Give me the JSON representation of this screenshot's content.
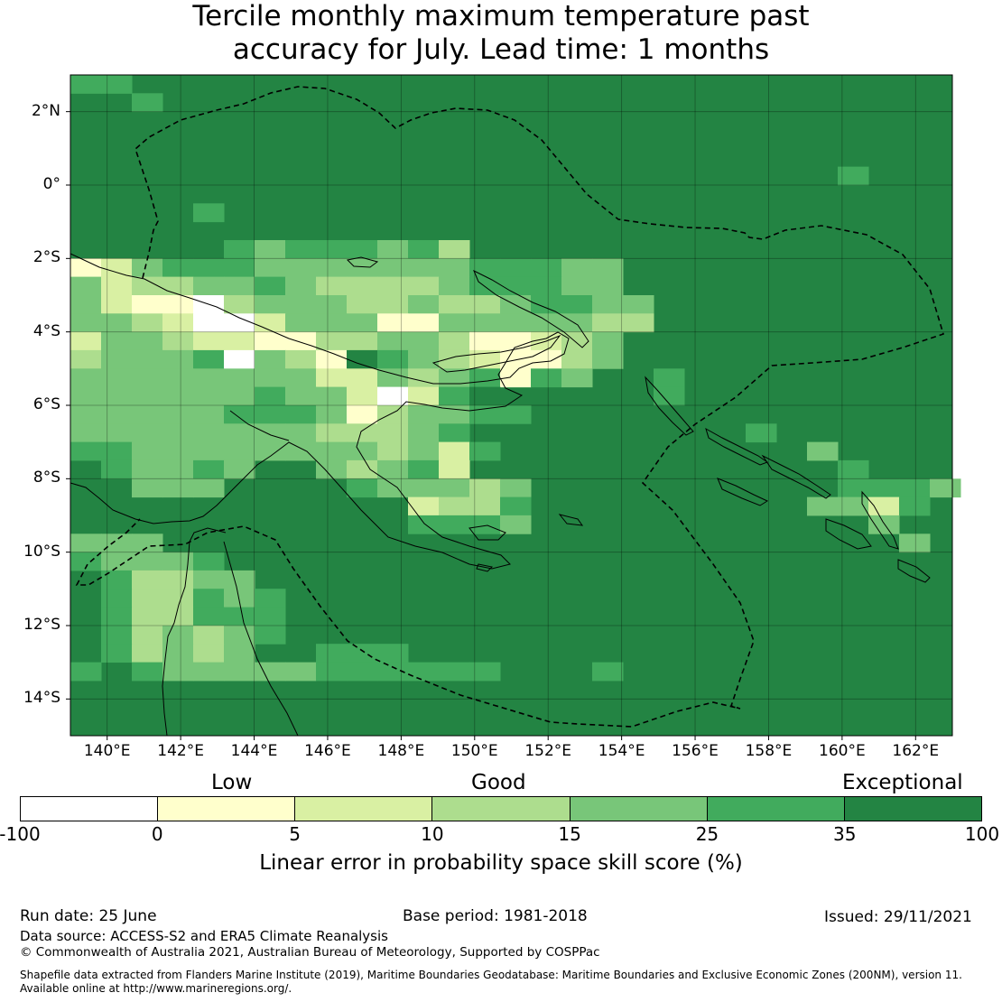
{
  "title": {
    "line1": "Tercile monthly maximum temperature past",
    "line2": "accuracy for July. Lead time: 1 months"
  },
  "map": {
    "lat_labels": [
      "2°N",
      "0°",
      "2°S",
      "4°S",
      "6°S",
      "8°S",
      "10°S",
      "12°S",
      "14°S"
    ],
    "lon_labels": [
      "140°E",
      "142°E",
      "144°E",
      "146°E",
      "148°E",
      "150°E",
      "152°E",
      "154°E",
      "156°E",
      "158°E",
      "160°E",
      "162°E"
    ],
    "lat_range": [
      -15,
      3
    ],
    "lon_range": [
      139,
      163
    ],
    "background_category": "35-100",
    "grid": true
  },
  "legend": {
    "quality_labels": [
      "Low",
      "Good",
      "Exceptional"
    ],
    "ticks": [
      "-100",
      "0",
      "5",
      "10",
      "15",
      "25",
      "35",
      "100"
    ],
    "categories": [
      {
        "range": "-100 to 0",
        "color": "#ffffff"
      },
      {
        "range": "0 to 5",
        "color": "#ffffcc"
      },
      {
        "range": "5 to 10",
        "color": "#d9f0a3"
      },
      {
        "range": "10 to 15",
        "color": "#addd8e"
      },
      {
        "range": "15 to 25",
        "color": "#78c679"
      },
      {
        "range": "25 to 35",
        "color": "#41ab5d"
      },
      {
        "range": "35 to 100",
        "color": "#238443"
      }
    ],
    "axis_title": "Linear error in probability space skill score (%)"
  },
  "footer": {
    "run_date": "Run date: 25 June",
    "base_period": "Base period: 1981-2018",
    "issued": "Issued: 29/11/2021",
    "data_source": "Data source: ACCESS-S2 and ERA5 Climate Reanalysis",
    "copyright": "© Commonwealth of Australia 2021, Australian Bureau of Meteorology, Supported by COSPPac",
    "shapefile_line1": "Shapefile data extracted from Flanders Marine Institute (2019), Maritime Boundaries Geodatabase: Maritime Boundaries and Exclusive Economic Zones (200NM), version 11.",
    "shapefile_line2": "Available online at http://www.marineregions.org/."
  }
}
